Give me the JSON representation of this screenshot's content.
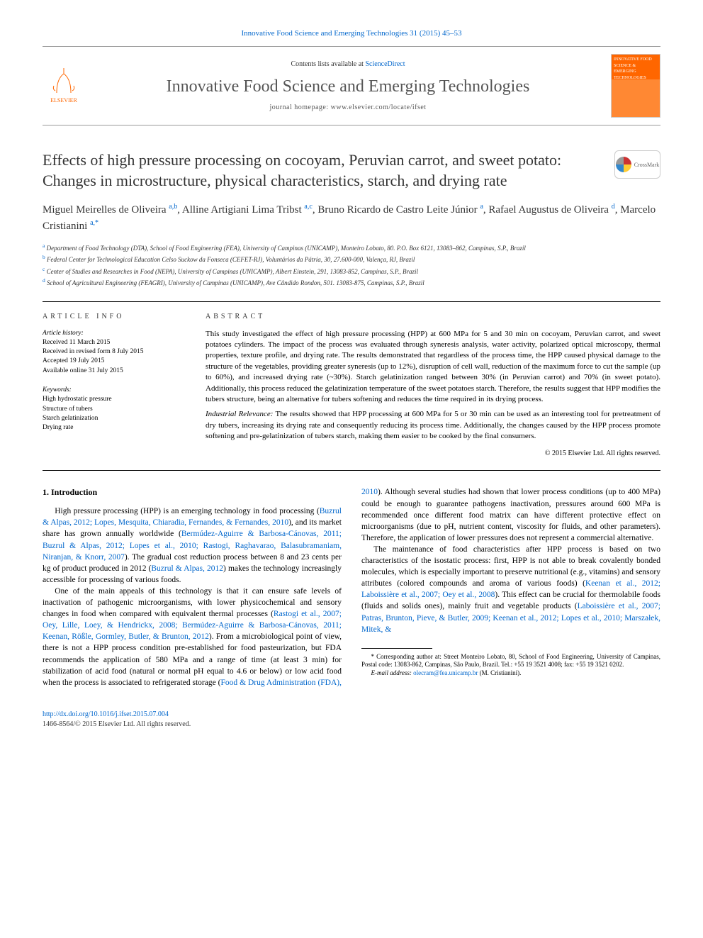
{
  "top_reference": "Innovative Food Science and Emerging Technologies 31 (2015) 45–53",
  "header": {
    "contents_prefix": "Contents lists available at ",
    "contents_link": "ScienceDirect",
    "journal_name": "Innovative Food Science and Emerging Technologies",
    "homepage_prefix": "journal homepage: ",
    "homepage": "www.elsevier.com/locate/ifset",
    "elsevier_label": "ELSEVIER",
    "cover_text": "INNOVATIVE FOOD SCIENCE & EMERGING TECHNOLOGIES"
  },
  "title": "Effects of high pressure processing on cocoyam, Peruvian carrot, and sweet potato: Changes in microstructure, physical characteristics, starch, and drying rate",
  "crossmark_label": "CrossMark",
  "authors_html": "Miguel Meirelles de Oliveira <sup>a,b</sup>, Alline Artigiani Lima Tribst <sup>a,c</sup>, Bruno Ricardo de Castro Leite Júnior <sup>a</sup>, Rafael Augustus de Oliveira <sup>d</sup>, Marcelo Cristianini <sup>a,*</sup>",
  "affiliations": [
    {
      "sup": "a",
      "text": " Department of Food Technology (DTA), School of Food Engineering (FEA), University of Campinas (UNICAMP), Monteiro Lobato, 80. P.O. Box 6121, 13083–862, Campinas, S.P., Brazil"
    },
    {
      "sup": "b",
      "text": " Federal Center for Technological Education Celso Suckow da Fonseca (CEFET-RJ), Voluntários da Pátria, 30, 27.600-000, Valença, RJ, Brazil"
    },
    {
      "sup": "c",
      "text": " Center of Studies and Researches in Food (NEPA), University of Campinas (UNICAMP), Albert Einstein, 291, 13083-852, Campinas, S.P., Brazil"
    },
    {
      "sup": "d",
      "text": " School of Agricultural Engineering (FEAGRI), University of Campinas (UNICAMP), Ave Cândido Rondon, 501. 13083-875, Campinas, S.P., Brazil"
    }
  ],
  "info": {
    "heading": "ARTICLE INFO",
    "history_label": "Article history:",
    "history": [
      "Received 11 March 2015",
      "Received in revised form 8 July 2015",
      "Accepted 19 July 2015",
      "Available online 31 July 2015"
    ],
    "keywords_label": "Keywords:",
    "keywords": [
      "High hydrostatic pressure",
      "Structure of tubers",
      "Starch gelatinization",
      "Drying rate"
    ]
  },
  "abstract": {
    "heading": "ABSTRACT",
    "body": "This study investigated the effect of high pressure processing (HPP) at 600 MPa for 5 and 30 min on cocoyam, Peruvian carrot, and sweet potatoes cylinders. The impact of the process was evaluated through syneresis analysis, water activity, polarized optical microscopy, thermal properties, texture profile, and drying rate. The results demonstrated that regardless of the process time, the HPP caused physical damage to the structure of the vegetables, providing greater syneresis (up to 12%), disruption of cell wall, reduction of the maximum force to cut the sample (up to 60%), and increased drying rate (~30%). Starch gelatinization ranged between 30% (in Peruvian carrot) and 70% (in sweet potato). Additionally, this process reduced the gelatinization temperature of the sweet potatoes starch. Therefore, the results suggest that HPP modifies the tubers structure, being an alternative for tubers softening and reduces the time required in its drying process.",
    "relevance_label": "Industrial Relevance:",
    "relevance": " The results showed that HPP processing at 600 MPa for 5 or 30 min can be used as an interesting tool for pretreatment of dry tubers, increasing its drying rate and consequently reducing its process time. Additionally, the changes caused by the HPP process promote softening and pre-gelatinization of tubers starch, making them easier to be cooked by the final consumers.",
    "copyright": "© 2015 Elsevier Ltd. All rights reserved."
  },
  "body": {
    "section_heading": "1. Introduction",
    "p1_a": "High pressure processing (HPP) is an emerging technology in food processing (",
    "p1_l1": "Buzrul & Alpas, 2012; Lopes, Mesquita, Chiaradia, Fernandes, & Fernandes, 2010",
    "p1_b": "), and its market share has grown annually worldwide (",
    "p1_l2": "Bermúdez-Aguirre & Barbosa-Cánovas, 2011; Buzrul & Alpas, 2012; Lopes et al., 2010; Rastogi, Raghavarao, Balasubramaniam, Niranjan, & Knorr, 2007",
    "p1_c": "). The gradual cost reduction process between 8 and 23 cents per kg of product produced in 2012 (",
    "p1_l3": "Buzrul & Alpas, 2012",
    "p1_d": ") makes the technology increasingly accessible for processing of various foods.",
    "p2_a": "One of the main appeals of this technology is that it can ensure safe levels of inactivation of pathogenic microorganisms, with lower physicochemical and sensory changes in food when compared with equivalent thermal processes (",
    "p2_l1": "Rastogi et al., 2007; Oey, Lille, Loey, & Hendrickx, 2008; Bermúdez-Aguirre & Barbosa-Cánovas, 2011; Keenan, Rößle, Gormley, Butler, & Brunton, 2012",
    "p2_b": "). From a microbiological point ",
    "p2_c": "of view, there is not a HPP process condition pre-established for food pasteurization, but FDA recommends the application of 580 MPa and a range of time (at least 3 min) for stabilization of acid food (natural or normal pH equal to 4.6 or below) or low acid food when the process is associated to refrigerated storage (",
    "p2_l2": "Food & Drug Administration (FDA), 2010",
    "p2_d": "). Although several studies had shown that lower process conditions (up to 400 MPa) could be enough to guarantee pathogens inactivation, pressures around 600 MPa is recommended once different food matrix can have different protective effect on microorganisms (due to pH, nutrient content, viscosity for fluids, and other parameters). Therefore, the application of lower pressures does not represent a commercial alternative.",
    "p3_a": "The maintenance of food characteristics after HPP process is based on two characteristics of the isostatic process: first, HPP is not able to break covalently bonded molecules, which is especially important to preserve nutritional (e.g., vitamins) and sensory attributes (colored compounds and aroma of various foods) (",
    "p3_l1": "Keenan et al., 2012; Laboissière et al., 2007; Oey et al., 2008",
    "p3_b": "). This effect can be crucial for thermolabile foods (fluids and solids ones), mainly fruit and vegetable products (",
    "p3_l2": "Laboissière et al., 2007; Patras, Brunton, Pieve, & Butler, 2009; Keenan et al., 2012; Lopes et al., 2010; Marszałek, Mitek, &"
  },
  "footnote": {
    "corr": "* Corresponding author at: Street Monteiro Lobato, 80, School of Food Engineering, University of Campinas, Postal code: 13083-862, Campinas, São Paulo, Brazil. Tel.: +55 19 3521 4008; fax: +55 19 3521 0202.",
    "email_label": "E-mail address: ",
    "email": "olecram@fea.unicamp.br",
    "email_suffix": " (M. Cristianini)."
  },
  "bottom": {
    "doi": "http://dx.doi.org/10.1016/j.ifset.2015.07.004",
    "issn_copy": "1466-8564/© 2015 Elsevier Ltd. All rights reserved."
  }
}
